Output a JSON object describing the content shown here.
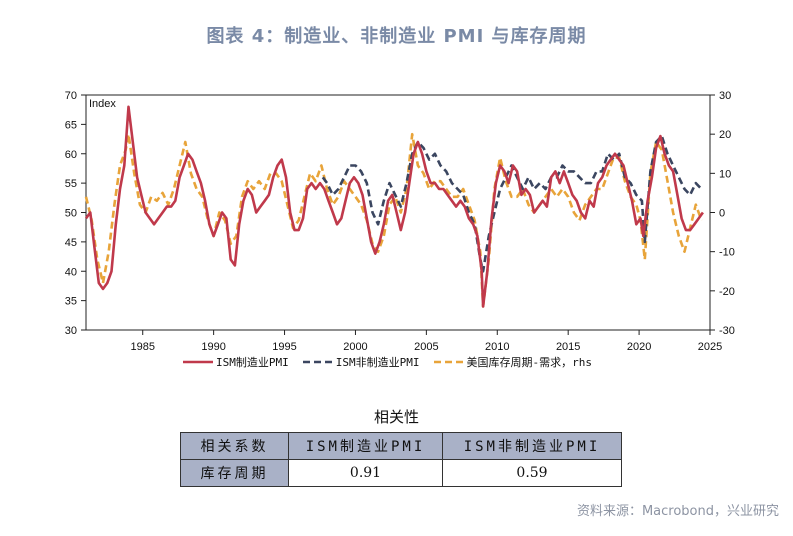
{
  "title": "图表 4：制造业、非制造业 PMI 与库存周期",
  "source": "资料来源：Macrobond，兴业研究",
  "chart_data": {
    "type": "line",
    "ylabel_left": "Index",
    "ylim_left": [
      30,
      70
    ],
    "yticks_left": [
      "30",
      "35",
      "40",
      "45",
      "50",
      "55",
      "60",
      "65",
      "70"
    ],
    "ylim_right": [
      -30,
      30
    ],
    "yticks_right": [
      "-30",
      "-20",
      "-10",
      "0",
      "10",
      "20",
      "30"
    ],
    "xlim": [
      1981,
      2025
    ],
    "xticks": [
      "1985",
      "1990",
      "1995",
      "2000",
      "2005",
      "2010",
      "2015",
      "2020",
      "2025"
    ],
    "series": [
      {
        "name": "ISM制造业PMI",
        "axis": "left",
        "color": "#c0394b",
        "x": [
          1981.0,
          1981.3,
          1981.6,
          1981.9,
          1982.2,
          1982.5,
          1982.8,
          1983.1,
          1983.4,
          1983.7,
          1984.0,
          1984.3,
          1984.6,
          1984.9,
          1985.2,
          1985.5,
          1985.8,
          1986.1,
          1986.4,
          1986.7,
          1987.0,
          1987.3,
          1987.6,
          1987.9,
          1988.2,
          1988.5,
          1988.8,
          1989.1,
          1989.4,
          1989.7,
          1990.0,
          1990.3,
          1990.6,
          1990.9,
          1991.2,
          1991.5,
          1991.8,
          1992.1,
          1992.4,
          1992.7,
          1993.0,
          1993.3,
          1993.6,
          1993.9,
          1994.2,
          1994.5,
          1994.8,
          1995.1,
          1995.4,
          1995.7,
          1996.0,
          1996.3,
          1996.6,
          1996.9,
          1997.2,
          1997.5,
          1997.8,
          1998.1,
          1998.4,
          1998.7,
          1999.0,
          1999.3,
          1999.6,
          1999.9,
          2000.2,
          2000.5,
          2000.8,
          2001.1,
          2001.4,
          2001.7,
          2002.0,
          2002.3,
          2002.6,
          2002.9,
          2003.2,
          2003.5,
          2003.8,
          2004.1,
          2004.4,
          2004.7,
          2005.0,
          2005.3,
          2005.6,
          2005.9,
          2006.2,
          2006.5,
          2006.8,
          2007.1,
          2007.4,
          2007.7,
          2008.0,
          2008.3,
          2008.6,
          2008.9,
          2009.0,
          2009.3,
          2009.6,
          2009.9,
          2010.2,
          2010.5,
          2010.8,
          2011.1,
          2011.4,
          2011.7,
          2012.0,
          2012.3,
          2012.6,
          2012.9,
          2013.2,
          2013.5,
          2013.8,
          2014.1,
          2014.4,
          2014.7,
          2015.0,
          2015.3,
          2015.6,
          2015.9,
          2016.2,
          2016.5,
          2016.8,
          2017.1,
          2017.4,
          2017.7,
          2018.0,
          2018.3,
          2018.6,
          2018.9,
          2019.2,
          2019.5,
          2019.8,
          2020.1,
          2020.3,
          2020.6,
          2020.9,
          2021.2,
          2021.5,
          2021.8,
          2022.1,
          2022.4,
          2022.7,
          2023.0,
          2023.3,
          2023.6,
          2023.9,
          2024.2,
          2024.5
        ],
        "values": [
          49,
          50,
          44,
          38,
          37,
          38,
          40,
          48,
          54,
          58,
          68,
          62,
          56,
          53,
          50,
          49,
          48,
          49,
          50,
          51,
          51,
          52,
          56,
          58,
          60,
          59,
          57,
          55,
          52,
          48,
          46,
          48,
          50,
          49,
          42,
          41,
          48,
          52,
          54,
          53,
          50,
          51,
          52,
          53,
          56,
          58,
          59,
          56,
          50,
          47,
          47,
          49,
          54,
          55,
          54,
          55,
          54,
          52,
          50,
          48,
          49,
          52,
          55,
          56,
          55,
          53,
          49,
          45,
          43,
          45,
          48,
          52,
          53,
          50,
          47,
          50,
          55,
          60,
          62,
          60,
          57,
          55,
          55,
          54,
          54,
          53,
          52,
          51,
          52,
          51,
          49,
          48,
          46,
          40,
          34,
          40,
          49,
          55,
          58,
          57,
          55,
          58,
          57,
          53,
          54,
          53,
          50,
          51,
          52,
          51,
          56,
          57,
          55,
          57,
          55,
          53,
          52,
          50,
          49,
          52,
          51,
          55,
          56,
          58,
          59,
          60,
          59,
          58,
          55,
          52,
          48,
          49,
          46,
          52,
          56,
          61,
          63,
          60,
          58,
          57,
          53,
          49,
          47,
          47,
          48,
          49,
          50
        ]
      },
      {
        "name": "ISM非制造业PMI",
        "axis": "left",
        "color": "#3b4660",
        "x": [
          1997.7,
          1998.0,
          1998.4,
          1998.8,
          1999.2,
          1999.6,
          2000.0,
          2000.4,
          2000.8,
          2001.2,
          2001.6,
          2002.0,
          2002.4,
          2002.8,
          2003.2,
          2003.6,
          2004.0,
          2004.4,
          2004.8,
          2005.2,
          2005.6,
          2006.0,
          2006.4,
          2006.8,
          2007.2,
          2007.6,
          2008.0,
          2008.4,
          2008.8,
          2009.0,
          2009.4,
          2009.8,
          2010.2,
          2010.6,
          2011.0,
          2011.4,
          2011.8,
          2012.2,
          2012.6,
          2013.0,
          2013.4,
          2013.8,
          2014.2,
          2014.6,
          2015.0,
          2015.4,
          2015.8,
          2016.2,
          2016.6,
          2017.0,
          2017.4,
          2017.8,
          2018.2,
          2018.6,
          2019.0,
          2019.4,
          2019.8,
          2020.2,
          2020.4,
          2020.8,
          2021.2,
          2021.6,
          2022.0,
          2022.4,
          2022.8,
          2023.2,
          2023.6,
          2024.0,
          2024.4
        ],
        "values": [
          56,
          55,
          53,
          54,
          56,
          58,
          58,
          57,
          55,
          50,
          48,
          52,
          55,
          53,
          51,
          55,
          60,
          62,
          61,
          59,
          60,
          58,
          57,
          55,
          54,
          53,
          50,
          48,
          42,
          40,
          46,
          50,
          54,
          56,
          58,
          56,
          54,
          56,
          54,
          55,
          54,
          56,
          56,
          58,
          57,
          57,
          56,
          55,
          55,
          57,
          57,
          60,
          59,
          60,
          56,
          55,
          53,
          52,
          45,
          57,
          62,
          63,
          60,
          58,
          56,
          54,
          53,
          55,
          54
        ]
      },
      {
        "name": "美国库存周期-需求，rhs",
        "axis": "right",
        "color": "#e8a43a",
        "x": [
          1981.0,
          1981.4,
          1981.8,
          1982.2,
          1982.6,
          1983.0,
          1983.4,
          1983.8,
          1984.0,
          1984.4,
          1984.8,
          1985.2,
          1985.6,
          1986.0,
          1986.4,
          1986.8,
          1987.2,
          1987.6,
          1988.0,
          1988.4,
          1988.8,
          1989.2,
          1989.6,
          1990.0,
          1990.4,
          1990.8,
          1991.2,
          1991.6,
          1992.0,
          1992.4,
          1992.8,
          1993.2,
          1993.6,
          1994.0,
          1994.4,
          1994.8,
          1995.2,
          1995.6,
          1996.0,
          1996.4,
          1996.8,
          1997.2,
          1997.6,
          1998.0,
          1998.4,
          1998.8,
          1999.2,
          1999.6,
          2000.0,
          2000.4,
          2000.8,
          2001.2,
          2001.6,
          2002.0,
          2002.4,
          2002.8,
          2003.2,
          2003.6,
          2004.0,
          2004.4,
          2004.8,
          2005.2,
          2005.6,
          2006.0,
          2006.4,
          2006.8,
          2007.2,
          2007.6,
          2008.0,
          2008.4,
          2008.8,
          2009.0,
          2009.4,
          2009.8,
          2010.2,
          2010.6,
          2011.0,
          2011.4,
          2011.8,
          2012.2,
          2012.6,
          2013.0,
          2013.4,
          2013.8,
          2014.2,
          2014.6,
          2015.0,
          2015.4,
          2015.8,
          2016.2,
          2016.6,
          2017.0,
          2017.4,
          2017.8,
          2018.2,
          2018.6,
          2019.0,
          2019.4,
          2019.8,
          2020.1,
          2020.4,
          2020.8,
          2021.2,
          2021.6,
          2022.0,
          2022.4,
          2022.8,
          2023.2,
          2023.6,
          2024.0,
          2024.4
        ],
        "values": [
          4,
          -2,
          -12,
          -18,
          -10,
          2,
          12,
          16,
          20,
          10,
          2,
          0,
          4,
          3,
          5,
          2,
          6,
          12,
          18,
          10,
          6,
          4,
          -2,
          -6,
          0,
          -2,
          -8,
          -6,
          4,
          8,
          6,
          8,
          6,
          10,
          10,
          8,
          2,
          -4,
          -2,
          4,
          10,
          8,
          12,
          6,
          2,
          4,
          8,
          6,
          4,
          2,
          -2,
          -8,
          -10,
          -6,
          2,
          4,
          0,
          6,
          20,
          12,
          10,
          6,
          8,
          8,
          6,
          4,
          4,
          6,
          2,
          -2,
          -10,
          -24,
          -12,
          6,
          14,
          8,
          4,
          4,
          6,
          2,
          0,
          2,
          4,
          6,
          4,
          6,
          4,
          0,
          -2,
          2,
          4,
          6,
          6,
          10,
          14,
          14,
          8,
          4,
          2,
          -2,
          -12,
          10,
          18,
          16,
          8,
          0,
          -6,
          -10,
          -4,
          2,
          -2
        ]
      }
    ]
  },
  "correlation_table": {
    "title": "相关性",
    "header": [
      "相关系数",
      "ISM制造业PMI",
      "ISM非制造业PMI"
    ],
    "row_label": "库存周期",
    "row_values": [
      "0.91",
      "0.59"
    ]
  }
}
